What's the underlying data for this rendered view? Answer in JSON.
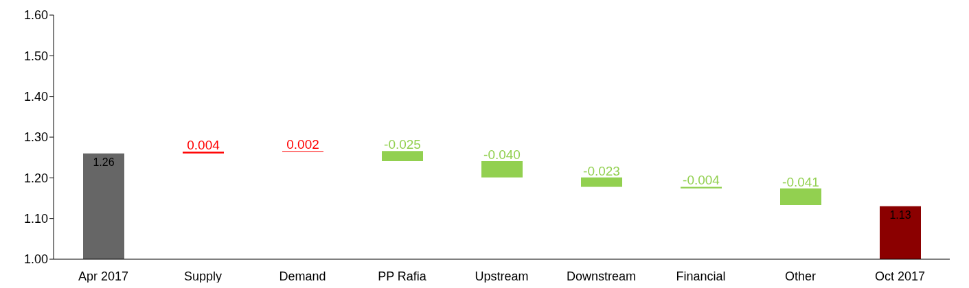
{
  "chart_data": {
    "type": "bar",
    "categories": [
      "Apr 2017",
      "Supply",
      "Demand",
      "PP Rafia",
      "Upstream",
      "Downstream",
      "Financial",
      "Other",
      "Oct 2017"
    ],
    "values": [
      1.26,
      0.004,
      0.002,
      -0.025,
      -0.04,
      -0.023,
      -0.004,
      -0.041,
      1.13
    ],
    "base": [
      null,
      1.26,
      1.264,
      1.266,
      1.241,
      1.201,
      1.178,
      1.174,
      null
    ],
    "colors": [
      "#666666",
      "#ff0000",
      "#ff0000",
      "#92d050",
      "#92d050",
      "#92d050",
      "#92d050",
      "#92d050",
      "#8b0000"
    ],
    "value_labels": [
      "1.26",
      "0.004",
      "0.002",
      "-0.025",
      "-0.040",
      "-0.023",
      "-0.004",
      "-0.041",
      "1.13"
    ],
    "ylim": [
      1.0,
      1.6
    ],
    "yticks": [
      {
        "value": 1.0,
        "label": "1.00"
      },
      {
        "value": 1.1,
        "label": "1.10"
      },
      {
        "value": 1.2,
        "label": "1.20"
      },
      {
        "value": 1.3,
        "label": "1.30"
      },
      {
        "value": 1.4,
        "label": "1.40"
      },
      {
        "value": 1.5,
        "label": "1.50"
      },
      {
        "value": 1.6,
        "label": "1.60"
      }
    ],
    "grid": false
  }
}
